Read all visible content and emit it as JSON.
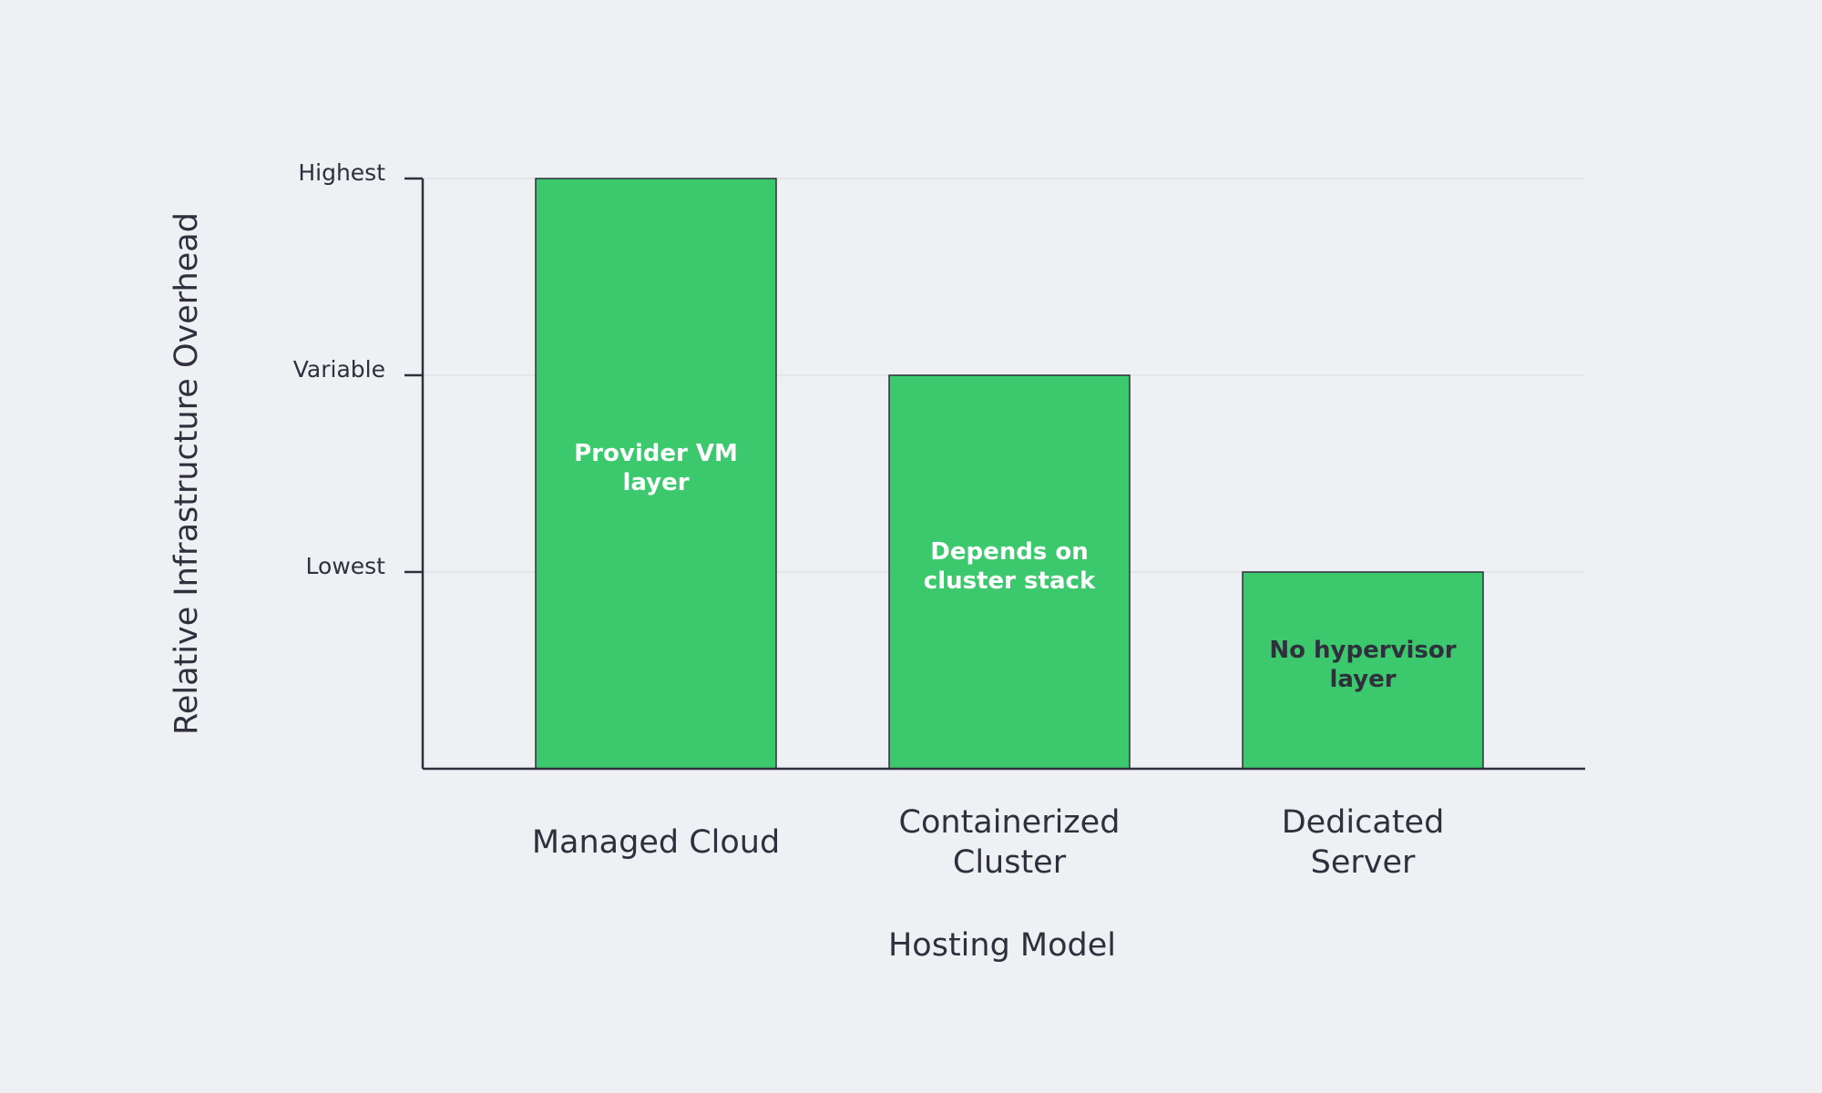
{
  "chart_data": {
    "type": "bar",
    "xlabel": "Hosting Model",
    "ylabel": "Relative Infrastructure Overhead",
    "categories": [
      [
        "Managed Cloud"
      ],
      [
        "Containerized",
        "Cluster"
      ],
      [
        "Dedicated",
        "Server"
      ]
    ],
    "values": [
      3,
      2,
      1
    ],
    "ylim": [
      0,
      3
    ],
    "yticks": [
      {
        "value": 1,
        "label": "Lowest"
      },
      {
        "value": 2,
        "label": "Variable"
      },
      {
        "value": 3,
        "label": "Highest"
      }
    ],
    "bar_annotations": [
      [
        "Provider VM",
        "layer"
      ],
      [
        "Depends on",
        "cluster stack"
      ],
      [
        "No hypervisor",
        "layer"
      ]
    ],
    "grid": true,
    "legend": "none",
    "colors": {
      "bar": "#3cc86c",
      "bar_stroke": "#2f2f3d",
      "axis": "#2f2f3d",
      "grid": "#dfe1e6",
      "annotation_light": "#ffffff",
      "annotation_dark": "#2f2f3d",
      "background": "#eff0f3"
    }
  }
}
